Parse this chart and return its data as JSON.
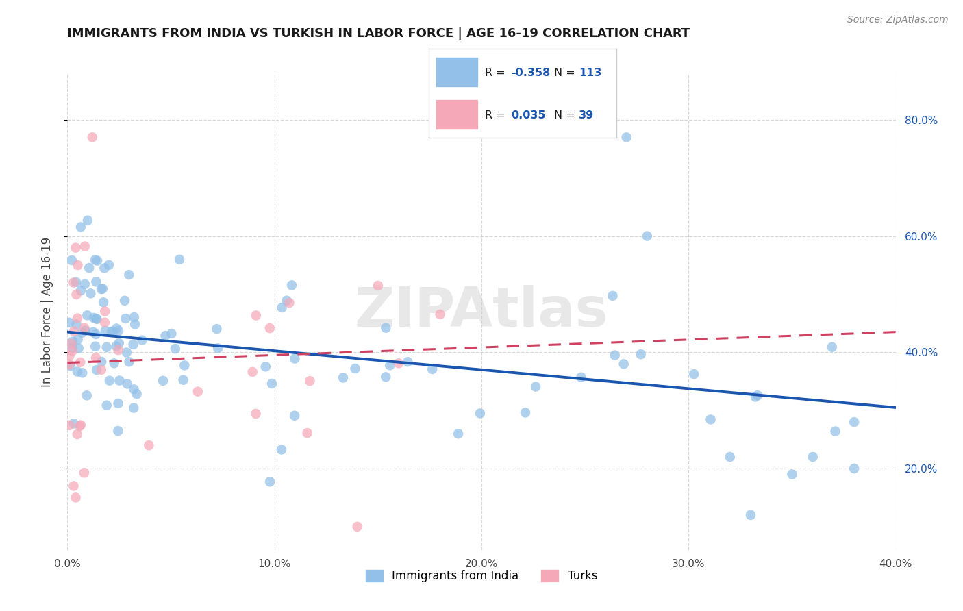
{
  "title": "IMMIGRANTS FROM INDIA VS TURKISH IN LABOR FORCE | AGE 16-19 CORRELATION CHART",
  "source": "Source: ZipAtlas.com",
  "ylabel": "In Labor Force | Age 16-19",
  "xlim": [
    0.0,
    0.4
  ],
  "ylim": [
    0.06,
    0.88
  ],
  "india_color": "#92c0e8",
  "turks_color": "#f4a8b8",
  "india_line_color": "#1a56b0",
  "turks_line_color": "#d04060",
  "legend_label_india": "Immigrants from India",
  "legend_label_turks": "Turks",
  "india_R": "-0.358",
  "india_N": "113",
  "turks_R": "0.035",
  "turks_N": "39",
  "watermark": "ZIPAtlas",
  "background_color": "#ffffff",
  "grid_color": "#d8d8d8",
  "y_tick_vals": [
    0.2,
    0.4,
    0.6,
    0.8
  ],
  "x_tick_vals": [
    0.0,
    0.1,
    0.2,
    0.3,
    0.4
  ],
  "india_line_x0": 0.0,
  "india_line_y0": 0.435,
  "india_line_x1": 0.4,
  "india_line_y1": 0.305,
  "turks_line_x0": 0.0,
  "turks_line_y0": 0.382,
  "turks_line_x1": 0.4,
  "turks_line_y1": 0.435
}
